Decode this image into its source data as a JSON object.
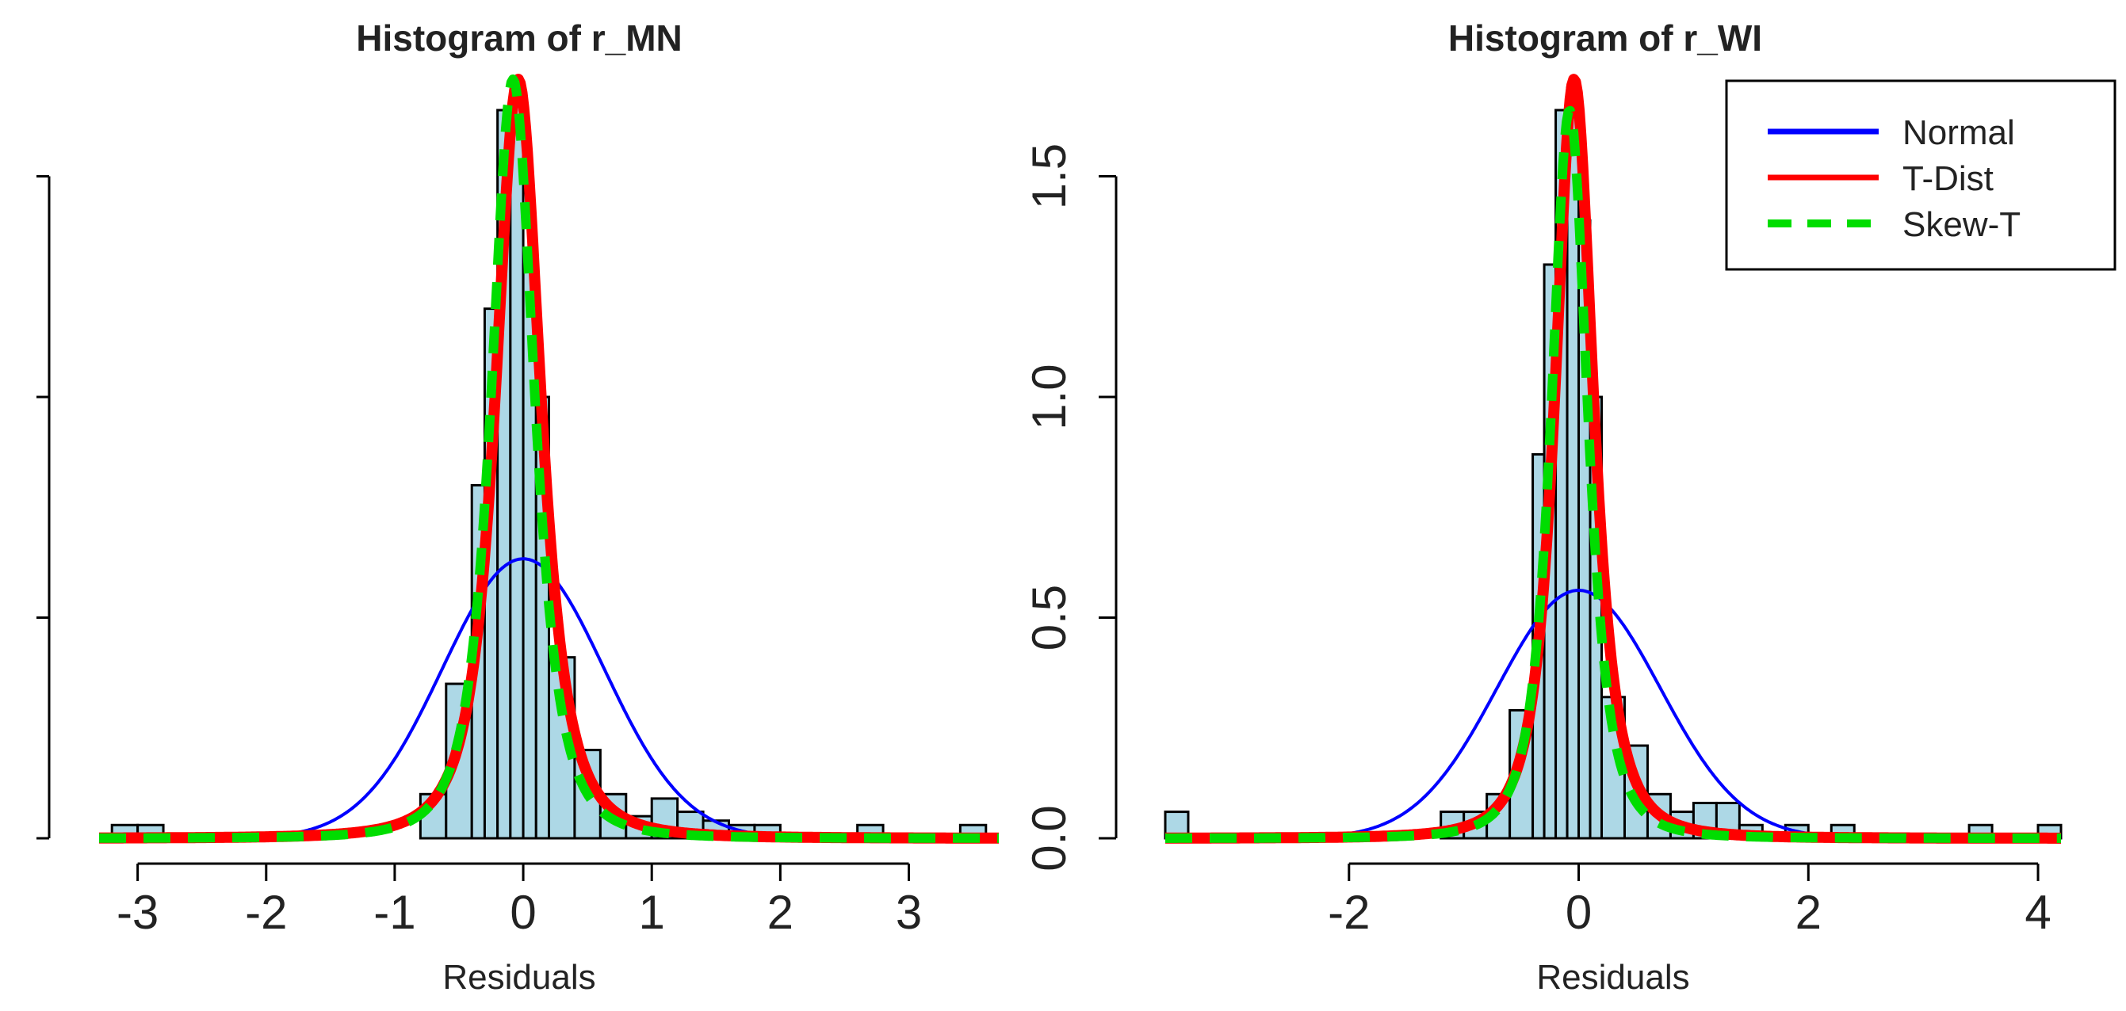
{
  "chart_data": [
    {
      "type": "bar",
      "title": "Histogram of r_MN",
      "xlabel": "Residuals",
      "ylabel": "",
      "xlim": [
        -3.3,
        3.7
      ],
      "ylim": [
        0,
        1.72
      ],
      "xticks": [
        -3,
        -2,
        -1,
        0,
        1,
        2,
        3
      ],
      "xtick_labels": [
        "-3",
        "-2",
        "-1",
        "0",
        "1",
        "2",
        "3"
      ],
      "yticks": [
        0,
        0.5,
        1.0,
        1.5
      ],
      "show_ytick_labels": false,
      "grid": false,
      "bar_color": "#add8e6",
      "bins": [
        {
          "x0": -3.2,
          "x1": -3.0,
          "y": 0.03
        },
        {
          "x0": -3.0,
          "x1": -2.8,
          "y": 0.03
        },
        {
          "x0": -0.8,
          "x1": -0.6,
          "y": 0.1
        },
        {
          "x0": -0.6,
          "x1": -0.4,
          "y": 0.35
        },
        {
          "x0": -0.4,
          "x1": -0.3,
          "y": 0.8
        },
        {
          "x0": -0.3,
          "x1": -0.2,
          "y": 1.2
        },
        {
          "x0": -0.2,
          "x1": -0.1,
          "y": 1.65
        },
        {
          "x0": -0.1,
          "x1": 0.0,
          "y": 1.68
        },
        {
          "x0": 0.0,
          "x1": 0.1,
          "y": 1.3
        },
        {
          "x0": 0.1,
          "x1": 0.2,
          "y": 1.0
        },
        {
          "x0": 0.2,
          "x1": 0.4,
          "y": 0.41
        },
        {
          "x0": 0.4,
          "x1": 0.6,
          "y": 0.2
        },
        {
          "x0": 0.6,
          "x1": 0.8,
          "y": 0.1
        },
        {
          "x0": 0.8,
          "x1": 1.0,
          "y": 0.05
        },
        {
          "x0": 1.0,
          "x1": 1.2,
          "y": 0.09
        },
        {
          "x0": 1.2,
          "x1": 1.4,
          "y": 0.06
        },
        {
          "x0": 1.4,
          "x1": 1.6,
          "y": 0.04
        },
        {
          "x0": 1.6,
          "x1": 1.8,
          "y": 0.03
        },
        {
          "x0": 1.8,
          "x1": 2.0,
          "y": 0.03
        },
        {
          "x0": 2.6,
          "x1": 2.8,
          "y": 0.03
        },
        {
          "x0": 3.4,
          "x1": 3.6,
          "y": 0.03
        }
      ],
      "curves": [
        {
          "name": "Normal",
          "color": "#0000ff",
          "dash": false,
          "width": 4,
          "dist": "normal",
          "mean": 0.0,
          "sd": 0.63
        },
        {
          "name": "T-Dist",
          "color": "#ff0000",
          "dash": false,
          "width": 14,
          "dist": "t",
          "loc": -0.04,
          "scale": 0.19,
          "df": 2.2,
          "peak": 1.72
        },
        {
          "name": "Skew-T",
          "color": "#00dd00",
          "dash": true,
          "width": 12,
          "dist": "t",
          "loc": -0.08,
          "scale": 0.18,
          "df": 2.4,
          "peak": 1.72
        }
      ]
    },
    {
      "type": "bar",
      "title": "Histogram of r_WI",
      "xlabel": "Residuals",
      "ylabel": "",
      "xlim": [
        -3.6,
        4.2
      ],
      "ylim": [
        0,
        1.72
      ],
      "xticks": [
        -2,
        0,
        2,
        4
      ],
      "xtick_labels": [
        "-2",
        "0",
        "2",
        "4"
      ],
      "yticks": [
        0.0,
        0.5,
        1.0,
        1.5
      ],
      "ytick_labels": [
        "0.0",
        "0.5",
        "1.0",
        "1.5"
      ],
      "grid": false,
      "bar_color": "#add8e6",
      "bins": [
        {
          "x0": -3.6,
          "x1": -3.4,
          "y": 0.06
        },
        {
          "x0": -1.2,
          "x1": -1.0,
          "y": 0.06
        },
        {
          "x0": -1.0,
          "x1": -0.8,
          "y": 0.06
        },
        {
          "x0": -0.8,
          "x1": -0.6,
          "y": 0.1
        },
        {
          "x0": -0.6,
          "x1": -0.4,
          "y": 0.29
        },
        {
          "x0": -0.4,
          "x1": -0.3,
          "y": 0.87
        },
        {
          "x0": -0.3,
          "x1": -0.2,
          "y": 1.3
        },
        {
          "x0": -0.2,
          "x1": -0.1,
          "y": 1.65
        },
        {
          "x0": -0.1,
          "x1": 0.0,
          "y": 1.7
        },
        {
          "x0": 0.0,
          "x1": 0.1,
          "y": 1.4
        },
        {
          "x0": 0.1,
          "x1": 0.2,
          "y": 1.0
        },
        {
          "x0": 0.2,
          "x1": 0.4,
          "y": 0.32
        },
        {
          "x0": 0.4,
          "x1": 0.6,
          "y": 0.21
        },
        {
          "x0": 0.6,
          "x1": 0.8,
          "y": 0.1
        },
        {
          "x0": 0.8,
          "x1": 1.0,
          "y": 0.06
        },
        {
          "x0": 1.0,
          "x1": 1.2,
          "y": 0.08
        },
        {
          "x0": 1.2,
          "x1": 1.4,
          "y": 0.08
        },
        {
          "x0": 1.4,
          "x1": 1.6,
          "y": 0.03
        },
        {
          "x0": 1.8,
          "x1": 2.0,
          "y": 0.03
        },
        {
          "x0": 2.2,
          "x1": 2.4,
          "y": 0.03
        },
        {
          "x0": 3.4,
          "x1": 3.6,
          "y": 0.03
        },
        {
          "x0": 4.0,
          "x1": 4.2,
          "y": 0.03
        }
      ],
      "curves": [
        {
          "name": "Normal",
          "color": "#0000ff",
          "dash": false,
          "width": 4,
          "dist": "normal",
          "mean": 0.0,
          "sd": 0.71
        },
        {
          "name": "T-Dist",
          "color": "#ff0000",
          "dash": false,
          "width": 14,
          "dist": "t",
          "loc": -0.04,
          "scale": 0.18,
          "df": 2.2,
          "peak": 1.72
        },
        {
          "name": "Skew-T",
          "color": "#00dd00",
          "dash": true,
          "width": 12,
          "dist": "t",
          "loc": -0.08,
          "scale": 0.17,
          "df": 2.4,
          "peak": 1.65
        }
      ],
      "legend": {
        "position": "top-right",
        "entries": [
          "Normal",
          "T-Dist",
          "Skew-T"
        ]
      }
    }
  ]
}
